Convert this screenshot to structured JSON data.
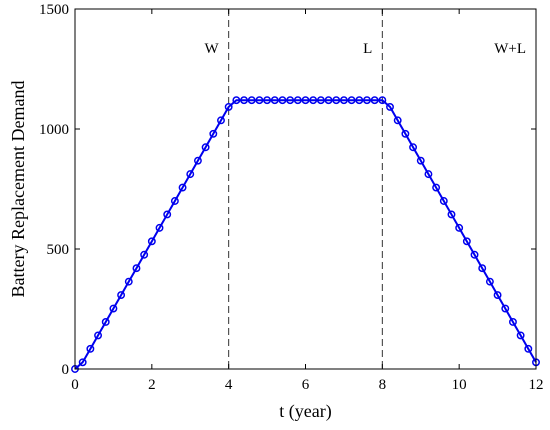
{
  "chart_data": {
    "type": "line",
    "title": "",
    "xlabel": "t (year)",
    "ylabel": "Battery Replacement Demand",
    "xlim": [
      0,
      12
    ],
    "ylim": [
      0,
      1500
    ],
    "x_ticks": [
      0,
      2,
      4,
      6,
      8,
      10,
      12
    ],
    "y_ticks": [
      0,
      500,
      1000,
      1500
    ],
    "x_tick_labels": [
      "0",
      "2",
      "4",
      "6",
      "8",
      "10",
      "12"
    ],
    "y_tick_labels": [
      "0",
      "500",
      "1000",
      "1500"
    ],
    "grid": false,
    "legend": "none",
    "marker": "circle",
    "line_color": "#0000ee",
    "annotations": [
      {
        "text": "W",
        "x": 4
      },
      {
        "text": "L",
        "x": 8
      },
      {
        "text": "W+L",
        "x": 12
      }
    ],
    "vertical_lines": [
      4,
      8,
      12
    ],
    "series": [
      {
        "x": [
          0,
          0.2,
          0.4,
          0.6,
          0.8,
          1,
          1.2,
          1.4,
          1.6,
          1.8,
          2,
          2.2,
          2.4,
          2.6,
          2.8,
          3,
          3.2,
          3.4,
          3.6,
          3.8,
          4,
          4.2,
          4.4,
          4.6,
          4.8,
          5,
          5.2,
          5.4,
          5.6,
          5.8,
          6,
          6.2,
          6.4,
          6.6,
          6.8,
          7,
          7.2,
          7.4,
          7.6,
          7.8,
          8,
          8.2,
          8.4,
          8.6,
          8.8,
          9,
          9.2,
          9.4,
          9.6,
          9.8,
          10,
          10.2,
          10.4,
          10.6,
          10.8,
          11,
          11.2,
          11.4,
          11.6,
          11.8,
          12
        ],
        "y": [
          0,
          28,
          84,
          140,
          196,
          252,
          308,
          364,
          420,
          476,
          532,
          588,
          644,
          700,
          756,
          812,
          868,
          924,
          980,
          1036,
          1092,
          1120,
          1120,
          1120,
          1120,
          1120,
          1120,
          1120,
          1120,
          1120,
          1120,
          1120,
          1120,
          1120,
          1120,
          1120,
          1120,
          1120,
          1120,
          1120,
          1120,
          1092,
          1036,
          980,
          924,
          868,
          812,
          756,
          700,
          644,
          588,
          532,
          476,
          420,
          364,
          308,
          252,
          196,
          140,
          84,
          28
        ]
      }
    ]
  }
}
